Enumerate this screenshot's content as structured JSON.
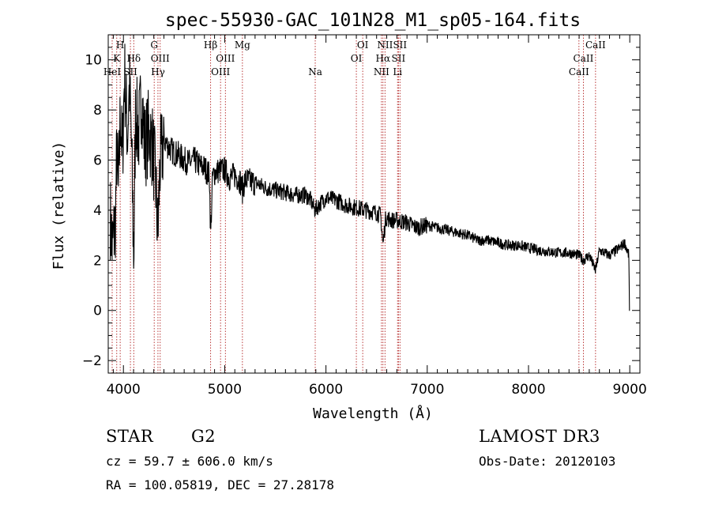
{
  "chart_data": {
    "type": "line",
    "title": "spec-55930-GAC_101N28_M1_sp05-164.fits",
    "xlabel": "Wavelength (Å)",
    "ylabel": "Flux (relative)",
    "xlim": [
      3850,
      9100
    ],
    "ylim": [
      -2.5,
      11.0
    ],
    "xticks": [
      4000,
      5000,
      6000,
      7000,
      8000,
      9000
    ],
    "yticks": [
      -2,
      0,
      2,
      4,
      6,
      8,
      10
    ],
    "series_name": "flux",
    "anchors": [
      [
        3870,
        3.8
      ],
      [
        3890,
        2.5
      ],
      [
        3920,
        3.5
      ],
      [
        3935,
        6.5
      ],
      [
        3950,
        4.5
      ],
      [
        3970,
        8.0
      ],
      [
        3990,
        6.0
      ],
      [
        4010,
        9.5
      ],
      [
        4040,
        7.0
      ],
      [
        4060,
        9.0
      ],
      [
        4080,
        6.5
      ],
      [
        4102,
        2.0
      ],
      [
        4120,
        8.0
      ],
      [
        4150,
        7.0
      ],
      [
        4180,
        8.6
      ],
      [
        4210,
        6.5
      ],
      [
        4250,
        7.2
      ],
      [
        4290,
        6.5
      ],
      [
        4320,
        5.0
      ],
      [
        4340,
        2.9
      ],
      [
        4360,
        5.8
      ],
      [
        4400,
        6.8
      ],
      [
        4450,
        6.5
      ],
      [
        4500,
        6.3
      ],
      [
        4550,
        6.2
      ],
      [
        4600,
        6.0
      ],
      [
        4650,
        5.9
      ],
      [
        4700,
        6.0
      ],
      [
        4750,
        5.8
      ],
      [
        4800,
        5.7
      ],
      [
        4850,
        5.4
      ],
      [
        4861,
        2.9
      ],
      [
        4880,
        5.3
      ],
      [
        4900,
        5.5
      ],
      [
        4950,
        5.6
      ],
      [
        5000,
        5.6
      ],
      [
        5050,
        5.3
      ],
      [
        5100,
        5.4
      ],
      [
        5150,
        5.2
      ],
      [
        5175,
        4.8
      ],
      [
        5200,
        5.2
      ],
      [
        5300,
        5.1
      ],
      [
        5400,
        4.9
      ],
      [
        5500,
        4.8
      ],
      [
        5600,
        4.7
      ],
      [
        5700,
        4.6
      ],
      [
        5800,
        4.6
      ],
      [
        5850,
        4.4
      ],
      [
        5890,
        4.0
      ],
      [
        5950,
        4.3
      ],
      [
        6000,
        4.5
      ],
      [
        6100,
        4.4
      ],
      [
        6200,
        4.2
      ],
      [
        6300,
        4.1
      ],
      [
        6400,
        4.0
      ],
      [
        6500,
        3.9
      ],
      [
        6540,
        3.8
      ],
      [
        6563,
        2.6
      ],
      [
        6590,
        3.7
      ],
      [
        6650,
        3.6
      ],
      [
        6700,
        3.6
      ],
      [
        6800,
        3.5
      ],
      [
        6900,
        3.3
      ],
      [
        7000,
        3.4
      ],
      [
        7100,
        3.3
      ],
      [
        7200,
        3.2
      ],
      [
        7300,
        3.1
      ],
      [
        7400,
        3.0
      ],
      [
        7500,
        2.8
      ],
      [
        7600,
        2.8
      ],
      [
        7700,
        2.7
      ],
      [
        7800,
        2.6
      ],
      [
        7900,
        2.6
      ],
      [
        8000,
        2.5
      ],
      [
        8100,
        2.4
      ],
      [
        8200,
        2.35
      ],
      [
        8300,
        2.3
      ],
      [
        8400,
        2.3
      ],
      [
        8500,
        2.2
      ],
      [
        8540,
        2.0
      ],
      [
        8600,
        2.2
      ],
      [
        8662,
        1.6
      ],
      [
        8700,
        2.4
      ],
      [
        8800,
        2.2
      ],
      [
        8900,
        2.5
      ],
      [
        8950,
        2.7
      ],
      [
        8990,
        2.2
      ],
      [
        9000,
        0.0
      ]
    ],
    "noise_seed": 7,
    "spectral_lines": [
      {
        "name": "HeI",
        "wavelength": 3889,
        "row": 3
      },
      {
        "name": "K",
        "wavelength": 3934,
        "row": 2
      },
      {
        "name": "H",
        "wavelength": 3968,
        "row": 1
      },
      {
        "name": "SII",
        "wavelength": 4069,
        "row": 3
      },
      {
        "name": "Hδ",
        "wavelength": 4102,
        "row": 2
      },
      {
        "name": "G",
        "wavelength": 4304,
        "row": 1
      },
      {
        "name": "Hγ",
        "wavelength": 4341,
        "row": 3
      },
      {
        "name": "OIII",
        "wavelength": 4363,
        "row": 2
      },
      {
        "name": "Hβ",
        "wavelength": 4861,
        "row": 1
      },
      {
        "name": "OIII",
        "wavelength": 4959,
        "row": 3
      },
      {
        "name": "OIII",
        "wavelength": 5007,
        "row": 2
      },
      {
        "name": "Mg",
        "wavelength": 5175,
        "row": 1
      },
      {
        "name": "Na",
        "wavelength": 5894,
        "row": 3
      },
      {
        "name": "OI",
        "wavelength": 6300,
        "row": 2
      },
      {
        "name": "OI",
        "wavelength": 6363,
        "row": 1
      },
      {
        "name": "NII",
        "wavelength": 6548,
        "row": 3
      },
      {
        "name": "Hα",
        "wavelength": 6563,
        "row": 2
      },
      {
        "name": "NII",
        "wavelength": 6583,
        "row": 1
      },
      {
        "name": "Li",
        "wavelength": 6707,
        "row": 3
      },
      {
        "name": "SII",
        "wavelength": 6716,
        "row": 2
      },
      {
        "name": "SII",
        "wavelength": 6731,
        "row": 1
      },
      {
        "name": "CaII",
        "wavelength": 8498,
        "row": 3
      },
      {
        "name": "CaII",
        "wavelength": 8542,
        "row": 2
      },
      {
        "name": "CaII",
        "wavelength": 8662,
        "row": 1
      }
    ],
    "colors": {
      "spectrum": "#000000",
      "line_markers": "#b22222",
      "axes": "#000000"
    }
  },
  "info": {
    "class": "STAR",
    "subclass": "G2",
    "survey": "LAMOST DR3",
    "redshift": "cz =  59.7 ± 606.0 km/s",
    "obs_date": "Obs-Date: 20120103",
    "coords": "RA = 100.05819, DEC =  27.28178"
  }
}
